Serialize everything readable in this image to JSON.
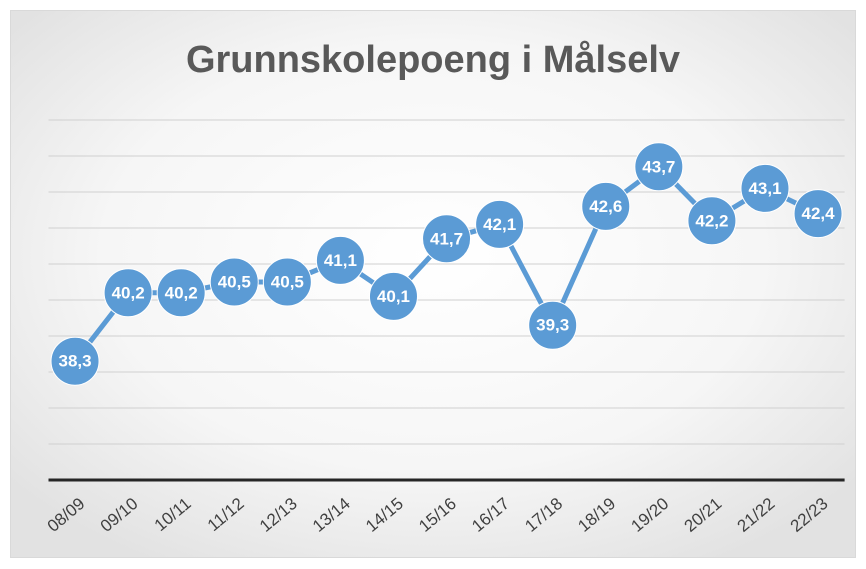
{
  "chart_data": {
    "type": "line",
    "title": "Grunnskolepoeng i Målselv",
    "categories": [
      "08/09",
      "09/10",
      "10/11",
      "11/12",
      "12/13",
      "13/14",
      "14/15",
      "15/16",
      "16/17",
      "17/18",
      "18/19",
      "19/20",
      "20/21",
      "21/22",
      "22/23"
    ],
    "series": [
      {
        "name": "Grunnskolepoeng",
        "color": "#5b9bd5",
        "values": [
          38.3,
          40.2,
          40.2,
          40.5,
          40.5,
          41.1,
          40.1,
          41.7,
          42.1,
          39.3,
          42.6,
          43.7,
          42.2,
          43.1,
          42.4
        ],
        "value_labels": [
          "38,3",
          "40,2",
          "40,2",
          "40,5",
          "40,5",
          "41,1",
          "40,1",
          "41,7",
          "42,1",
          "39,3",
          "42,6",
          "43,7",
          "42,2",
          "43,1",
          "42,4"
        ]
      }
    ],
    "ylim": [
      35,
      45
    ],
    "yticks": [
      35,
      36,
      37,
      38,
      39,
      40,
      41,
      42,
      43,
      44,
      45
    ],
    "grid": true
  }
}
